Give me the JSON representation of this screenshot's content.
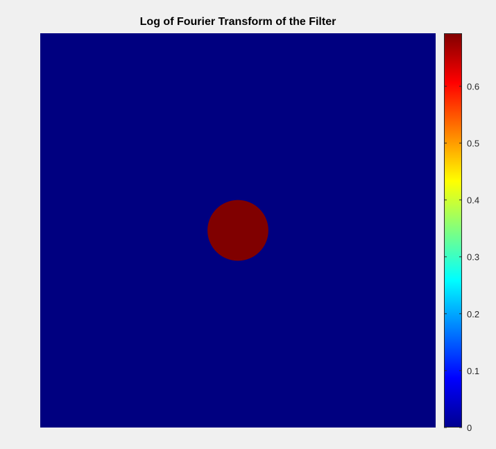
{
  "chart_data": {
    "type": "heatmap",
    "title": "Log of Fourier Transform of the Filter",
    "xlabel": "",
    "ylabel": "",
    "axes_visible": false,
    "grid": false,
    "colormap": "jet",
    "background_value": 0,
    "features": [
      {
        "shape": "disk",
        "center": [
          0.5,
          0.5
        ],
        "radius_fraction": 0.077,
        "value": 0.693
      }
    ],
    "colorbar": {
      "location": "right",
      "range": [
        0,
        0.693
      ],
      "ticks": [
        0,
        0.1,
        0.2,
        0.3,
        0.4,
        0.5,
        0.6
      ],
      "tick_labels": [
        "0",
        "0.1",
        "0.2",
        "0.3",
        "0.4",
        "0.5",
        "0.6"
      ]
    }
  },
  "colors": {
    "background": "#f0f0f0",
    "low": "#00008f",
    "high": "#800000"
  }
}
